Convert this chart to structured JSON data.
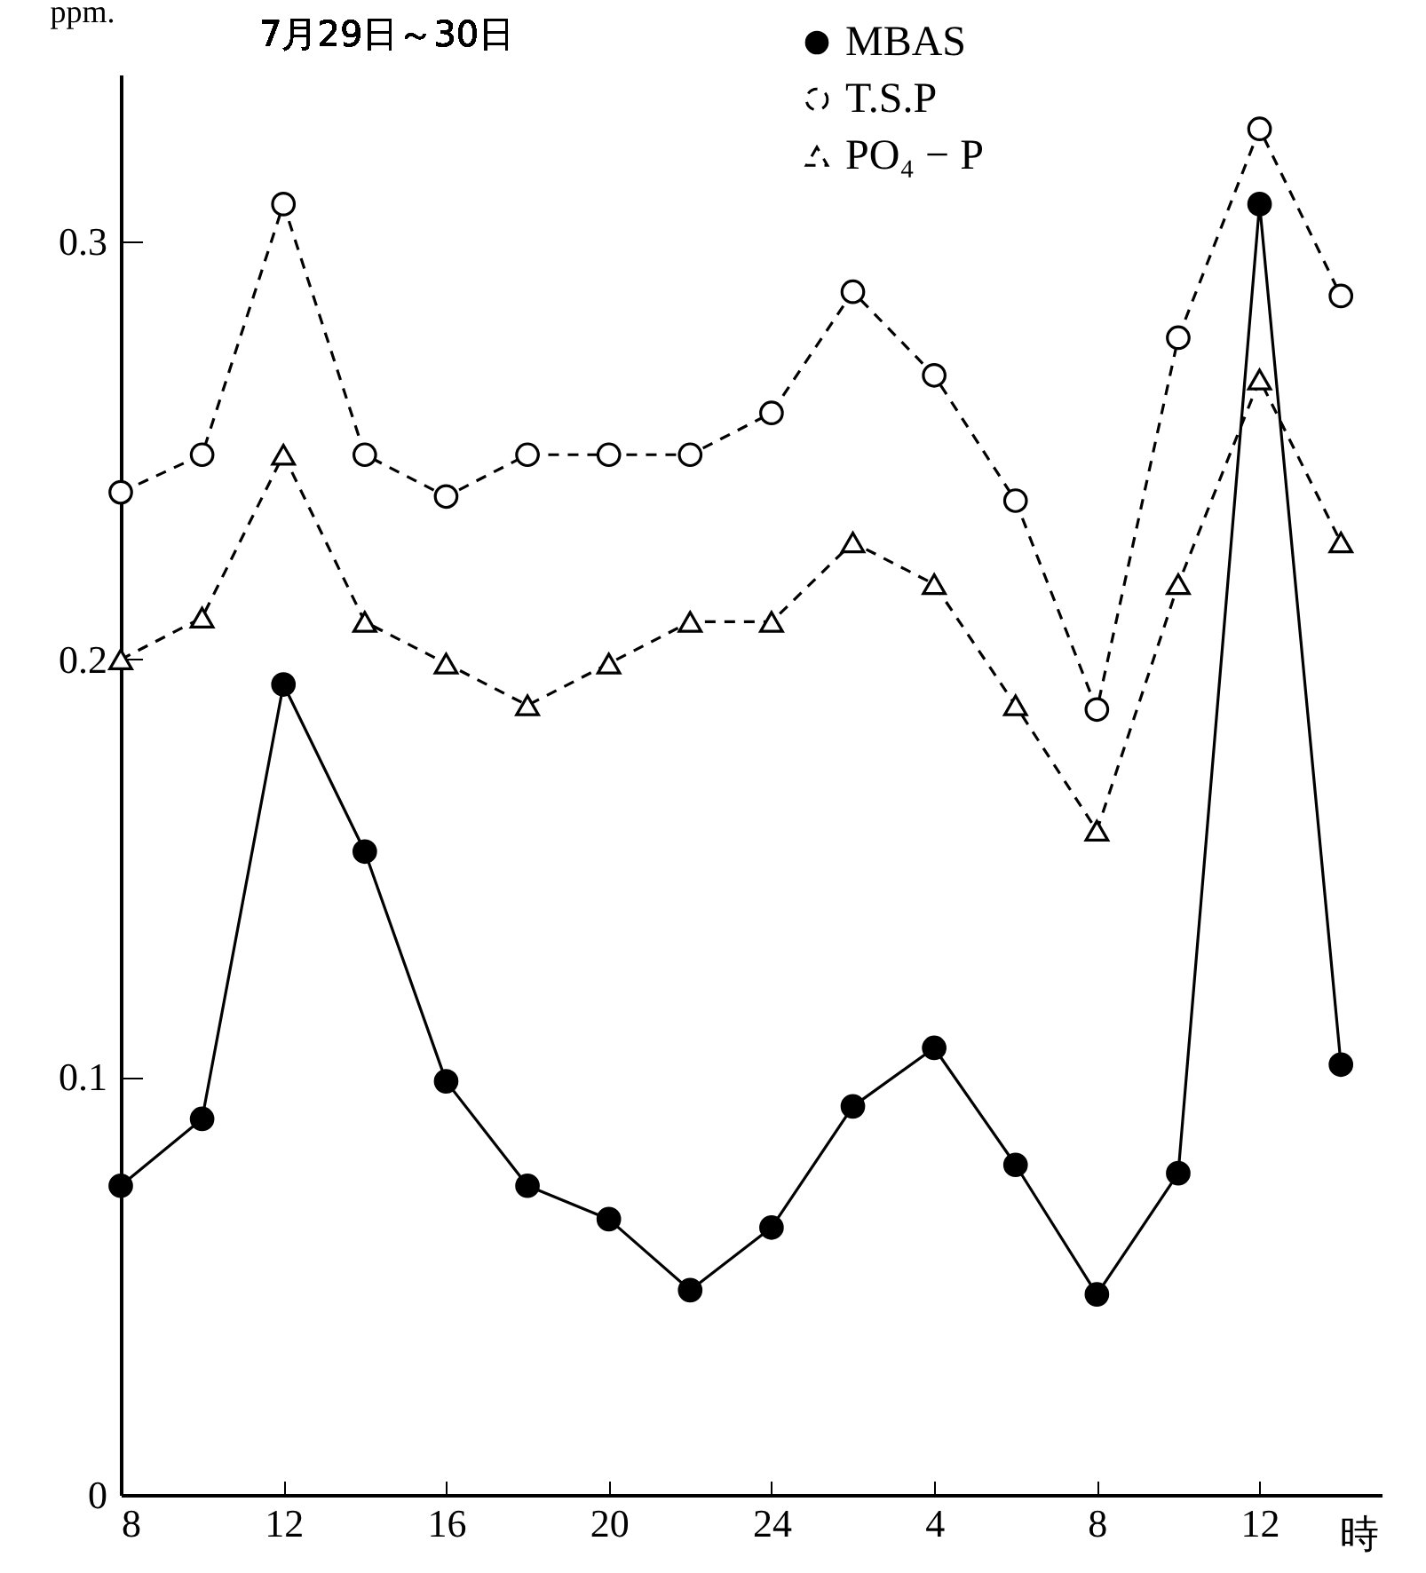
{
  "chart_data": {
    "type": "line",
    "title": "7月29日～30日",
    "xlabel": "時",
    "ylabel": "ppm.",
    "categories": [
      "8",
      null,
      "12",
      null,
      "16",
      null,
      "20",
      null,
      "24",
      null,
      "4",
      null,
      "8",
      null,
      "12",
      null
    ],
    "series": [
      {
        "name": "MBAS",
        "color": "#000000",
        "marker": "circle",
        "line_style": "solid",
        "values": [
          0.074,
          0.09,
          0.194,
          0.154,
          0.099,
          0.074,
          0.066,
          0.049,
          0.064,
          0.093,
          0.107,
          0.079,
          0.048,
          0.077,
          0.309,
          0.103
        ]
      },
      {
        "name": "T.S.P",
        "color": "#000000",
        "marker": "circle",
        "line_style": "dashed",
        "values": [
          0.24,
          0.249,
          0.309,
          0.249,
          0.239,
          0.249,
          0.249,
          0.249,
          0.259,
          0.288,
          0.268,
          0.238,
          0.188,
          0.277,
          0.327,
          0.287
        ]
      },
      {
        "name": "PO₄ − P",
        "color": "#000000",
        "marker": "triangle",
        "line_style": "dashed",
        "values": [
          0.2,
          0.21,
          0.249,
          0.209,
          0.199,
          0.189,
          0.199,
          0.209,
          0.209,
          0.228,
          0.218,
          0.189,
          0.159,
          0.218,
          0.267,
          0.228
        ]
      }
    ],
    "ylim": [
      0,
      0.34
    ],
    "yticks": [
      0,
      0.1,
      0.2,
      0.3
    ],
    "grid": false,
    "legend": "top right"
  }
}
